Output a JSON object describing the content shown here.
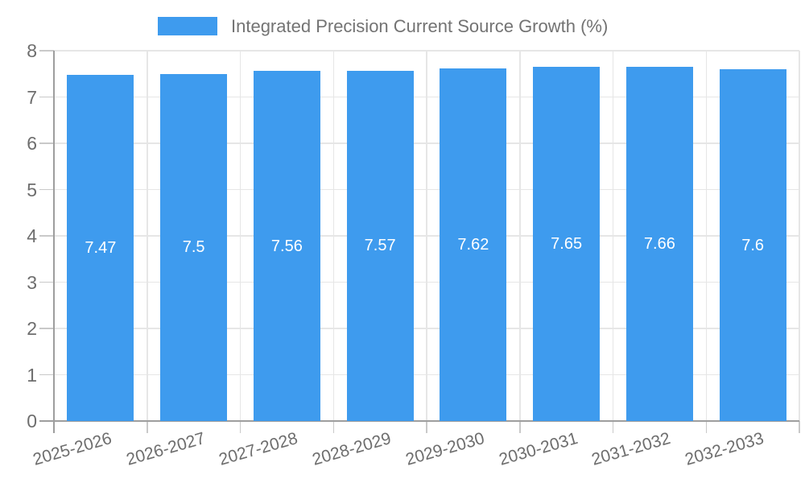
{
  "legend": {
    "label": "Integrated Precision Current Source Growth (%)",
    "swatch_icon": "legend-color-swatch"
  },
  "colors": {
    "bar": "#3e9bee",
    "axis_line": "#9e9e9e",
    "gridline": "#e6e6e6",
    "tick": "#c9c9c9",
    "axis_text": "#6e6e6e",
    "legend_text": "#737373",
    "bar_label_text": "#ffffff",
    "background": "#ffffff"
  },
  "chart_data": {
    "type": "bar",
    "title": "",
    "legend_entries": [
      "Integrated Precision Current Source Growth (%)"
    ],
    "legend_position": "top",
    "categories": [
      "2025-2026",
      "2026-2027",
      "2027-2028",
      "2028-2029",
      "2029-2030",
      "2030-2031",
      "2031-2032",
      "2032-2033"
    ],
    "series": [
      {
        "name": "Integrated Precision Current Source Growth (%)",
        "values": [
          7.47,
          7.5,
          7.56,
          7.57,
          7.62,
          7.65,
          7.66,
          7.6
        ]
      }
    ],
    "data_labels": [
      "7.47",
      "7.5",
      "7.56",
      "7.57",
      "7.62",
      "7.65",
      "7.66",
      "7.6"
    ],
    "data_labels_shown": true,
    "xlabel": "",
    "ylabel": "",
    "ylim": [
      0,
      8
    ],
    "yticks": [
      0,
      1,
      2,
      3,
      4,
      5,
      6,
      7,
      8
    ],
    "grid": true,
    "x_label_rotation_deg": -16
  }
}
